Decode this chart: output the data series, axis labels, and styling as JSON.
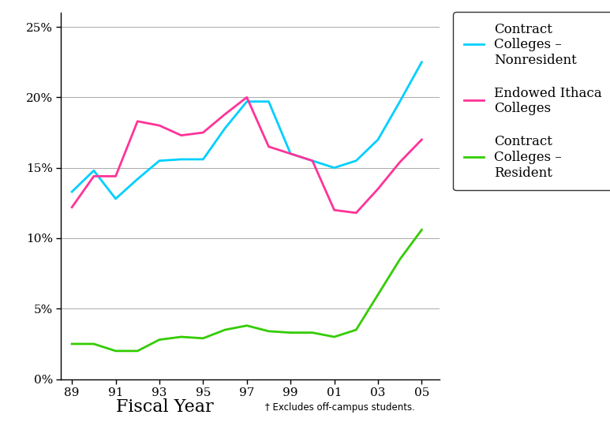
{
  "x_labels": [
    "89",
    "91",
    "93",
    "95",
    "97",
    "99",
    "01",
    "03",
    "05"
  ],
  "x_fine": [
    1989,
    1990,
    1991,
    1992,
    1993,
    1994,
    1995,
    1996,
    1997,
    1998,
    1999,
    2000,
    2001,
    2002,
    2003,
    2004,
    2005
  ],
  "nonresident_fine": [
    0.133,
    0.148,
    0.128,
    0.142,
    0.155,
    0.156,
    0.156,
    0.178,
    0.197,
    0.197,
    0.16,
    0.155,
    0.15,
    0.155,
    0.17,
    0.197,
    0.225
  ],
  "ithaca_fine": [
    0.122,
    0.144,
    0.144,
    0.183,
    0.18,
    0.173,
    0.175,
    0.188,
    0.2,
    0.165,
    0.16,
    0.155,
    0.12,
    0.118,
    0.135,
    0.154,
    0.17
  ],
  "resident_fine": [
    0.025,
    0.025,
    0.02,
    0.02,
    0.028,
    0.03,
    0.029,
    0.035,
    0.038,
    0.034,
    0.033,
    0.033,
    0.03,
    0.035,
    0.06,
    0.085,
    0.106
  ],
  "color_nonresident": "#00CFFF",
  "color_ithaca": "#FF3399",
  "color_resident": "#33CC00",
  "xlabel": "Fiscal Year",
  "footnote": "† Excludes off-campus students.",
  "legend_labels": [
    "Contract\nColleges –\nNonresident",
    "Endowed Ithaca\nColleges",
    "Contract\nColleges –\nResident"
  ],
  "ylim": [
    0,
    0.26
  ],
  "yticks": [
    0,
    0.05,
    0.1,
    0.15,
    0.2,
    0.25
  ],
  "background_color": "#FFFFFF",
  "linewidth": 2.0
}
